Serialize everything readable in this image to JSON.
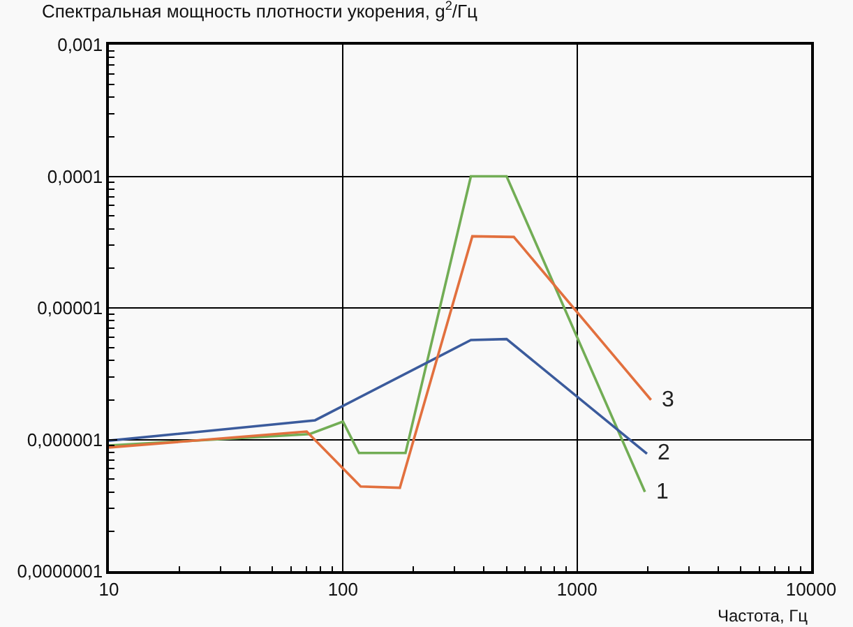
{
  "chart_data": {
    "type": "line",
    "ylabel": "Спектральная мощность плотности укорения, g$^{2}$/Гц",
    "xlabel": "Частота, Гц",
    "log": "xy",
    "xlim": [
      10,
      10000
    ],
    "xticks": [
      10,
      100,
      1000,
      10000
    ],
    "ylim": [
      1e-07,
      0.001
    ],
    "yticks": [
      {
        "value": 1e-07,
        "label": "0,0000001"
      },
      {
        "value": 1e-06,
        "label": "0,000001"
      },
      {
        "value": 1e-05,
        "label": "0,00001"
      },
      {
        "value": 0.0001,
        "label": "0,0001"
      },
      {
        "value": 0.001,
        "label": "0,001"
      }
    ],
    "grid": true,
    "legend": false,
    "marker": "none",
    "line_style": "solid",
    "series": [
      {
        "name": "1",
        "color": "#72ad55",
        "x": [
          10,
          72,
          100,
          117,
          185,
          352,
          500,
          1950
        ],
        "values": [
          9e-07,
          1.1e-06,
          1.37e-06,
          7.9e-07,
          7.9e-07,
          0.0001,
          0.0001,
          4e-07
        ]
      },
      {
        "name": "2",
        "color": "#3b5b9c",
        "x": [
          10,
          76,
          352,
          500,
          1990
        ],
        "values": [
          9.8e-07,
          1.4e-06,
          5.7e-06,
          5.8e-06,
          7.8e-07
        ]
      },
      {
        "name": "3",
        "color": "#e2703e",
        "x": [
          10,
          70,
          119,
          175,
          357,
          537,
          2070
        ],
        "values": [
          8.7e-07,
          1.15e-06,
          4.4e-07,
          4.3e-07,
          3.5e-05,
          3.46e-05,
          2e-06
        ]
      }
    ]
  }
}
